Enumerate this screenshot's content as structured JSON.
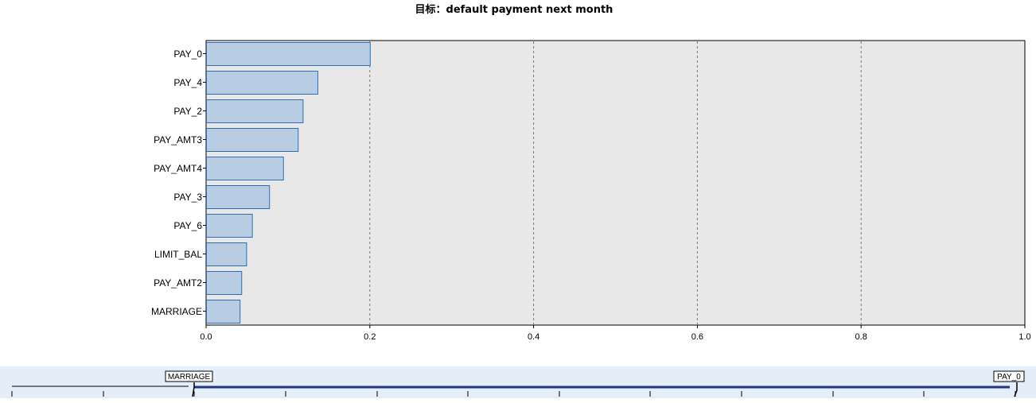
{
  "chart_data": {
    "type": "bar",
    "orientation": "horizontal",
    "title": "目标：default payment next month",
    "categories": [
      "PAY_0",
      "PAY_4",
      "PAY_2",
      "PAY_AMT3",
      "PAY_AMT4",
      "PAY_3",
      "PAY_6",
      "LIMIT_BAL",
      "PAY_AMT2",
      "MARRIAGE"
    ],
    "values": [
      0.2,
      0.136,
      0.118,
      0.112,
      0.094,
      0.077,
      0.056,
      0.049,
      0.043,
      0.041
    ],
    "xlim": [
      0,
      1
    ],
    "xticks": [
      "0.0",
      "0.2",
      "0.4",
      "0.6",
      "0.8",
      "1.0"
    ],
    "xlabel": "",
    "ylabel": "",
    "grid": "vertical dashed",
    "legend": "none"
  },
  "colors": {
    "plot_background": "#e8e8e8",
    "bar_fill": "#b8cde4",
    "bar_stroke": "#2a6fb5",
    "grid_line": "#777777",
    "slider_background": "#e3eef9",
    "slider_track": "#22348a"
  },
  "slider": {
    "min_label": "MARRIAGE",
    "max_label": "PAY_0"
  }
}
